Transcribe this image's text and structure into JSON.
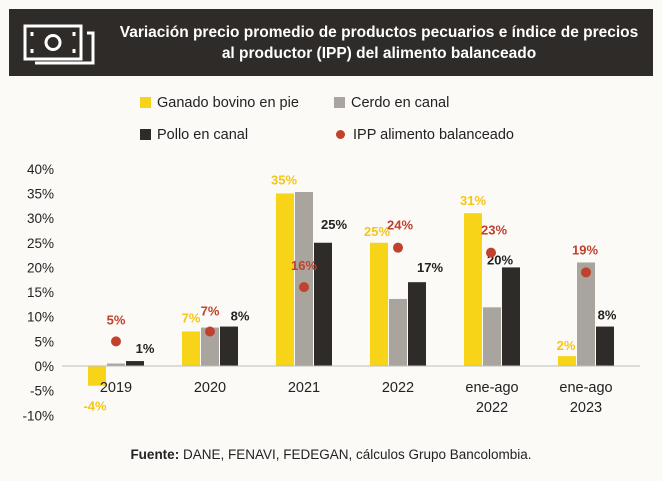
{
  "title": "Variación precio promedio de productos pecuarios e índice de precios al productor (IPP) del alimento balanceado",
  "icon": "money-bill-icon",
  "chart_data": {
    "type": "bar",
    "title": "Variación precio promedio de productos pecuarios e índice de precios al productor (IPP) del alimento balanceado",
    "categories": [
      "2019",
      "2020",
      "2021",
      "2022",
      "ene-ago 2022",
      "ene-ago 2023"
    ],
    "category_lines": [
      [
        "2019"
      ],
      [
        "2020"
      ],
      [
        "2021"
      ],
      [
        "2022"
      ],
      [
        "ene-ago",
        "2022"
      ],
      [
        "ene-ago",
        "2023"
      ]
    ],
    "yticks": [
      40,
      35,
      30,
      25,
      20,
      15,
      10,
      5,
      0,
      -5,
      -10
    ],
    "ytick_labels": [
      "40%",
      "35%",
      "30%",
      "25%",
      "20%",
      "15%",
      "10%",
      "5%",
      "0%",
      "-5%",
      "-10%"
    ],
    "ylim": [
      -10,
      40
    ],
    "xlabel": "",
    "ylabel": "",
    "series": [
      {
        "name": "Ganado bovino en pie",
        "color": "#f7d417",
        "values": [
          -4,
          7,
          35,
          25,
          31,
          2
        ],
        "labels": [
          "-4%",
          "7%",
          "35%",
          "25%",
          "31%",
          "2%"
        ]
      },
      {
        "name": "Cerdo en canal",
        "color": "#aaa49e",
        "values": [
          0.5,
          7.8,
          35.3,
          13.6,
          11.9,
          21
        ],
        "labels": [
          "",
          "",
          "",
          "",
          "",
          ""
        ]
      },
      {
        "name": "Pollo en canal",
        "color": "#2e2b29",
        "values": [
          1,
          8,
          25,
          17,
          20,
          8
        ],
        "labels": [
          "1%",
          "8%",
          "25%",
          "17%",
          "20%",
          "8%"
        ]
      },
      {
        "name": "IPP alimento balanceado",
        "type": "scatter",
        "color": "#c0412c",
        "values": [
          5,
          7,
          16,
          24,
          23,
          19
        ],
        "labels": [
          "5%",
          "7%",
          "16%",
          "24%",
          "23%",
          "19%"
        ]
      }
    ],
    "legend_position": "top"
  },
  "source": {
    "label": "Fuente:",
    "text": " DANE, FENAVI, FEDEGAN, cálculos Grupo Bancolombia."
  }
}
